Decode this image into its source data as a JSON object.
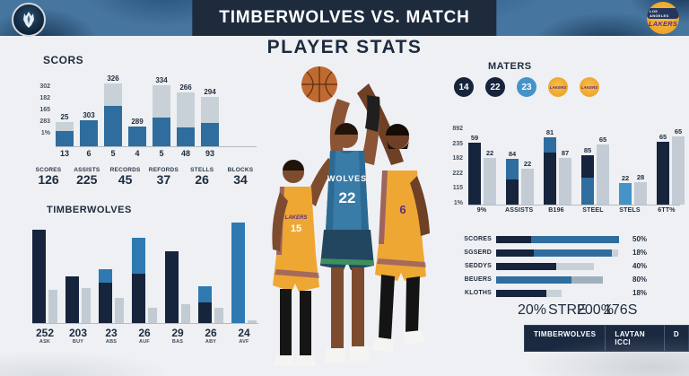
{
  "header": {
    "title": "TIMBERWOLVES VS. MATCH",
    "subtitle": "PLAYER STATS",
    "home_logo": "timberwolves-crest",
    "away_logo_top": "LOS ANGELES",
    "away_logo_word": "LAKERS"
  },
  "colors": {
    "navy": "#16243c",
    "steel": "#2e6d9e",
    "bright_steel": "#2e7ab0",
    "light_blue": "#4593c9",
    "gray_bar": "#c9d1d8",
    "gray_bar2": "#9fb0bd",
    "panel_navy": "#1d2b3d",
    "gold": "#eda325",
    "purple": "#5b2d83",
    "background": "#eef0f3"
  },
  "stats_row": [
    {
      "label": "SCORES",
      "value": "126"
    },
    {
      "label": "ASSISTS",
      "value": "225"
    },
    {
      "label": "RECORDS",
      "value": "45"
    },
    {
      "label": "REFORDS",
      "value": "37"
    },
    {
      "label": "STELLS",
      "value": "26"
    },
    {
      "label": "BLOCKS",
      "value": "34"
    }
  ],
  "maters": {
    "title": "MATERS",
    "badges": [
      {
        "label": "14",
        "color": "navy"
      },
      {
        "label": "22",
        "color": "navy"
      },
      {
        "label": "23",
        "color": "light_blue"
      }
    ],
    "logo_word": "LAKERS",
    "logo_count": 2
  },
  "players": {
    "center": {
      "team": "WOLVES",
      "number": "22"
    },
    "left": {
      "team": "LAKERS",
      "number": "15"
    },
    "right": {
      "number": "6"
    }
  },
  "footer": {
    "cells": [
      "TIMBERWOLVES",
      "LAVTAN ICCI",
      "D"
    ]
  },
  "chart_data": [
    {
      "id": "scors",
      "type": "bar",
      "title": "SCORS",
      "y_ticks": [
        "302",
        "182",
        "165",
        "283",
        "1%"
      ],
      "bars": [
        {
          "label": "25",
          "category": "13",
          "total_pct": 39,
          "dark_pct": 25
        },
        {
          "label": "303",
          "category": "6",
          "total_pct": 42,
          "dark_pct": 42
        },
        {
          "label": "326",
          "category": "5",
          "total_pct": 100,
          "dark_pct": 65
        },
        {
          "label": "289",
          "category": "4",
          "total_pct": 32,
          "dark_pct": 32
        },
        {
          "label": "334",
          "category": "5",
          "total_pct": 97,
          "dark_pct": 46
        },
        {
          "label": "266",
          "category": "48",
          "total_pct": 86,
          "dark_pct": 30
        },
        {
          "label": "294",
          "category": "93",
          "total_pct": 79,
          "dark_pct": 37
        }
      ]
    },
    {
      "id": "timberwolves",
      "type": "bar",
      "title": "TIMBERWOLVES",
      "groups": [
        {
          "value": "252",
          "sub": "ASK",
          "main_pct": 93,
          "style": "navy",
          "accent_pct": 0,
          "gray_pct": 33
        },
        {
          "value": "203",
          "sub": "BUY",
          "main_pct": 46,
          "style": "navy",
          "accent_pct": 0,
          "gray_pct": 35
        },
        {
          "value": "23",
          "sub": "ABS",
          "main_pct": 54,
          "style": "split",
          "accent_pct": 25,
          "gray_pct": 25
        },
        {
          "value": "26",
          "sub": "AUF",
          "main_pct": 85,
          "style": "split",
          "accent_pct": 42,
          "gray_pct": 15
        },
        {
          "value": "29",
          "sub": "BAS",
          "main_pct": 71,
          "style": "navy",
          "accent_pct": 0,
          "gray_pct": 19
        },
        {
          "value": "26",
          "sub": "ABY",
          "main_pct": 37,
          "style": "split",
          "accent_pct": 45,
          "gray_pct": 15
        },
        {
          "value": "24",
          "sub": "AVF",
          "main_pct": 100,
          "style": "steel",
          "accent_pct": 100,
          "gray_pct": 3
        }
      ]
    },
    {
      "id": "maters-bars",
      "type": "bar",
      "y_ticks": [
        "892",
        "235",
        "182",
        "222",
        "115",
        "1%"
      ],
      "groups": [
        {
          "cat": "9%",
          "a_label": "59",
          "a_pct": 80,
          "a_style": "navy",
          "a_accent_pct": 0,
          "b_label": "22",
          "b_pct": 61
        },
        {
          "cat": "ASSISTS",
          "a_label": "84",
          "a_pct": 59,
          "a_style": "steel-top",
          "a_accent_pct": 45,
          "b_label": "22",
          "b_pct": 47
        },
        {
          "cat": "B196",
          "a_label": "81",
          "a_pct": 87,
          "a_style": "steel-top",
          "a_accent_pct": 22,
          "b_label": "87",
          "b_pct": 61
        },
        {
          "cat": "STEEL",
          "a_label": "85",
          "a_pct": 64,
          "a_style": "steel-bot",
          "a_accent_pct": 55,
          "b_label": "65",
          "b_pct": 78
        },
        {
          "cat": "STELS",
          "a_label": "22",
          "a_pct": 28,
          "a_style": "lightblue",
          "a_accent_pct": 0,
          "b_label": "28",
          "b_pct": 29
        },
        {
          "cat": "6TT%",
          "a_label": "65",
          "a_pct": 81,
          "a_style": "navy",
          "a_accent_pct": 0,
          "b_label": "65",
          "b_pct": 88
        }
      ]
    },
    {
      "id": "hbars",
      "type": "hbar",
      "rows": [
        {
          "label": "SCORES",
          "pct_label": "50%",
          "segments": [
            {
              "color": "navy",
              "pct": 28
            },
            {
              "color": "steel",
              "pct": 70
            }
          ]
        },
        {
          "label": "SGSERD",
          "pct_label": "18%",
          "segments": [
            {
              "color": "navy",
              "pct": 30
            },
            {
              "color": "steel",
              "pct": 62
            },
            {
              "color": "gray_bar",
              "pct": 5
            }
          ]
        },
        {
          "label": "SEDDYS",
          "pct_label": "40%",
          "segments": [
            {
              "color": "navy",
              "pct": 48
            },
            {
              "color": "gray_bar",
              "pct": 30
            }
          ]
        },
        {
          "label": "BEUERS",
          "pct_label": "80%",
          "segments": [
            {
              "color": "steel",
              "pct": 60
            },
            {
              "color": "gray_bar2",
              "pct": 25
            }
          ]
        },
        {
          "label": "KLOTHS",
          "pct_label": "18%",
          "segments": [
            {
              "color": "navy",
              "pct": 40
            },
            {
              "color": "gray_bar",
              "pct": 12
            }
          ]
        }
      ],
      "x_ticks": [
        "20%",
        "STRE",
        "200%",
        "176S"
      ]
    }
  ]
}
